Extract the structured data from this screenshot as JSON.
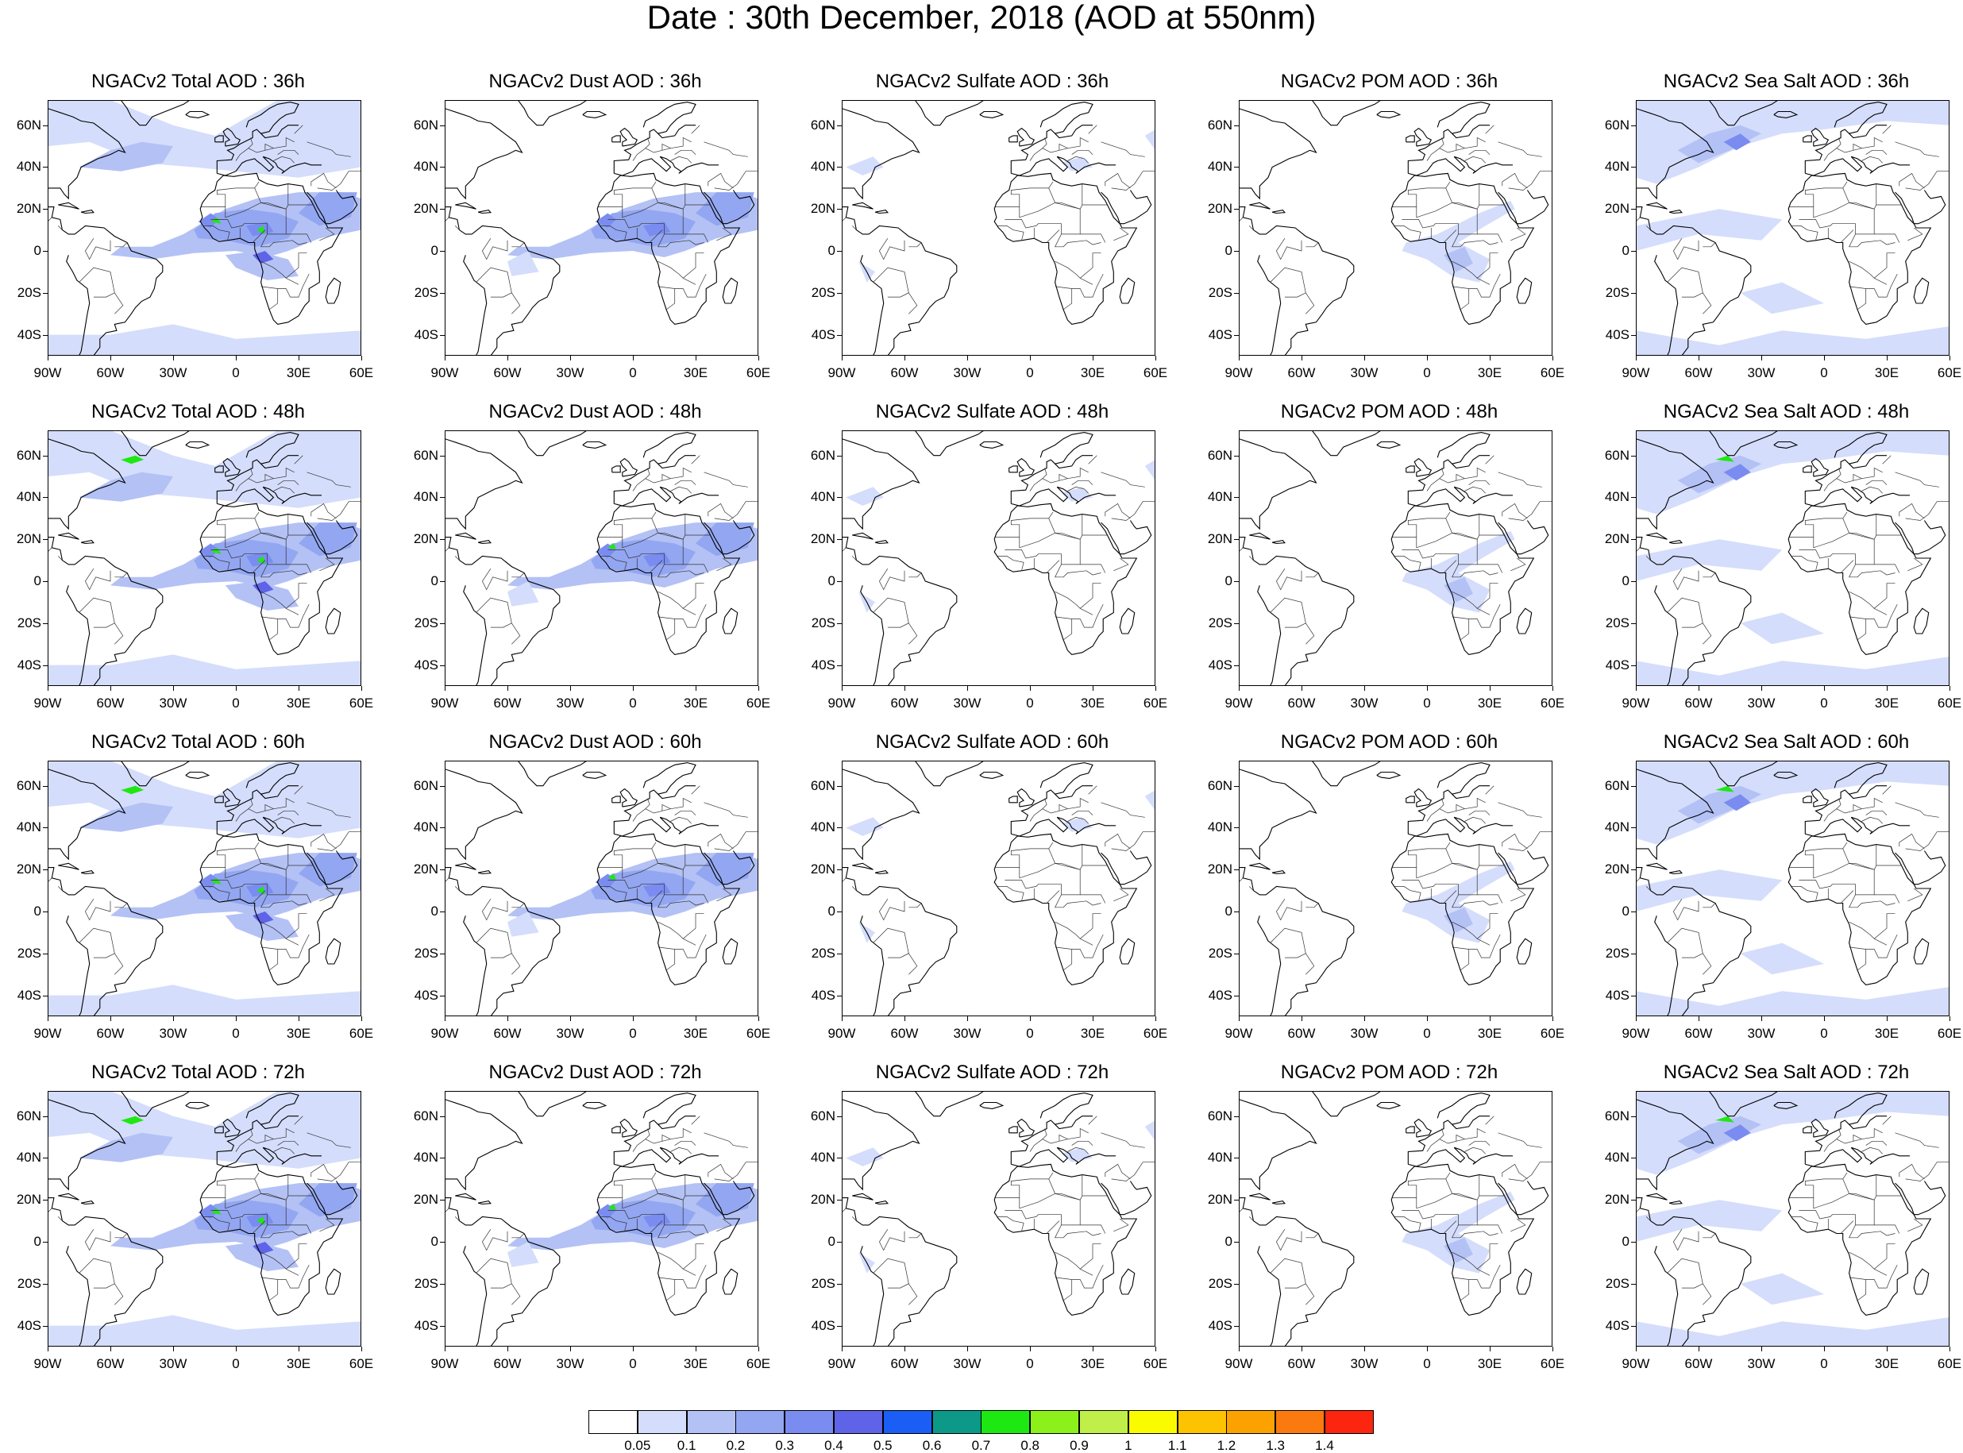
{
  "title": "Date : 30th December, 2018 (AOD at 550nm)",
  "axes": {
    "lat_labels": [
      "60N",
      "40N",
      "20N",
      "0",
      "20S",
      "40S"
    ],
    "lon_labels": [
      "90W",
      "60W",
      "30W",
      "0",
      "30E",
      "60E"
    ],
    "lat_values": [
      60,
      40,
      20,
      0,
      -20,
      -40
    ],
    "lon_values": [
      -90,
      -60,
      -30,
      0,
      30,
      60
    ],
    "lat_range": [
      -50,
      72
    ],
    "lon_range": [
      -90,
      60
    ]
  },
  "panels": [
    {
      "title": "NGACv2 Total AOD : 36h",
      "species": "total",
      "hour": 36
    },
    {
      "title": "NGACv2 Dust AOD : 36h",
      "species": "dust",
      "hour": 36
    },
    {
      "title": "NGACv2 Sulfate AOD : 36h",
      "species": "sulfate",
      "hour": 36
    },
    {
      "title": "NGACv2 POM AOD : 36h",
      "species": "pom",
      "hour": 36
    },
    {
      "title": "NGACv2 Sea Salt AOD : 36h",
      "species": "seasalt",
      "hour": 36
    },
    {
      "title": "NGACv2 Total AOD : 48h",
      "species": "total",
      "hour": 48
    },
    {
      "title": "NGACv2 Dust AOD : 48h",
      "species": "dust",
      "hour": 48
    },
    {
      "title": "NGACv2 Sulfate AOD : 48h",
      "species": "sulfate",
      "hour": 48
    },
    {
      "title": "NGACv2 POM AOD : 48h",
      "species": "pom",
      "hour": 48
    },
    {
      "title": "NGACv2 Sea Salt AOD : 48h",
      "species": "seasalt",
      "hour": 48
    },
    {
      "title": "NGACv2 Total AOD : 60h",
      "species": "total",
      "hour": 60
    },
    {
      "title": "NGACv2 Dust AOD : 60h",
      "species": "dust",
      "hour": 60
    },
    {
      "title": "NGACv2 Sulfate AOD : 60h",
      "species": "sulfate",
      "hour": 60
    },
    {
      "title": "NGACv2 POM AOD : 60h",
      "species": "pom",
      "hour": 60
    },
    {
      "title": "NGACv2 Sea Salt AOD : 60h",
      "species": "seasalt",
      "hour": 60
    },
    {
      "title": "NGACv2 Total AOD : 72h",
      "species": "total",
      "hour": 72
    },
    {
      "title": "NGACv2 Dust AOD : 72h",
      "species": "dust",
      "hour": 72
    },
    {
      "title": "NGACv2 Sulfate AOD : 72h",
      "species": "sulfate",
      "hour": 72
    },
    {
      "title": "NGACv2 POM AOD : 72h",
      "species": "pom",
      "hour": 72
    },
    {
      "title": "NGACv2 Sea Salt  AOD : 72h",
      "species": "seasalt",
      "hour": 72
    }
  ],
  "colorbar": {
    "labels": [
      "0.05",
      "0.1",
      "0.2",
      "0.3",
      "0.4",
      "0.5",
      "0.6",
      "0.7",
      "0.8",
      "0.9",
      "1",
      "1.1",
      "1.2",
      "1.3",
      "1.4"
    ],
    "colors": [
      "#ffffff",
      "#d4ddfb",
      "#b3c1f5",
      "#93a6f1",
      "#7a8cf0",
      "#5e63e8",
      "#1a5ef5",
      "#0c9988",
      "#1ee812",
      "#8cf01a",
      "#c0ef4a",
      "#fbfb00",
      "#fdc300",
      "#fca200",
      "#fb7a10",
      "#fb2510"
    ]
  }
}
